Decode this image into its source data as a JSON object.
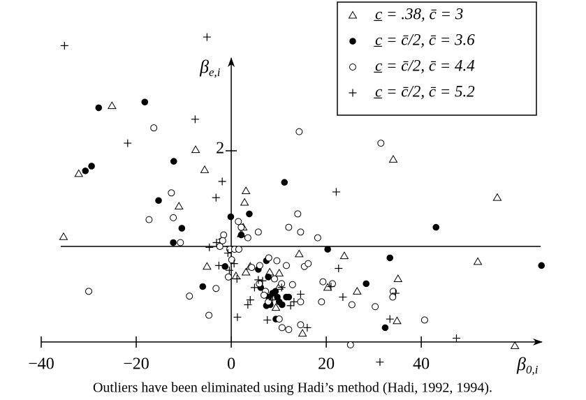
{
  "chart_data": {
    "type": "scatter",
    "x_label": {
      "text": "β",
      "sub": "0,i"
    },
    "y_label": {
      "text": "β",
      "sub": "e,i"
    },
    "caption": "Outliers have been eliminated using Hadi’s method (Hadi, 1992, 1994).",
    "xlim": [
      -40,
      66
    ],
    "ylim": [
      -0.3,
      3.3
    ],
    "xticks": [
      {
        "value": -40,
        "label": "−40"
      },
      {
        "value": -20,
        "label": "−20"
      },
      0,
      20,
      40
    ],
    "yticks": [
      1,
      2
    ],
    "reference_line": 1,
    "legend": "top-right",
    "series": [
      {
        "name": "c̲ = .38, c̄ = 3",
        "color": "#000000",
        "marker": "open-triangle",
        "x": [
          -25.1,
          -32.1,
          -35.3,
          -7.5,
          -5.6,
          -11.0,
          3.1,
          2.8,
          2.5,
          2.1,
          -5.1,
          1.0,
          3.1,
          4.0,
          10.1,
          8.1,
          10.1,
          9.4,
          14.3,
          20.3,
          23.8,
          26.5,
          34.1,
          35.1,
          34.9,
          15.0,
          51.9,
          56.0,
          59.7
        ],
        "values": [
          2.47,
          1.76,
          1.1,
          2.01,
          1.8,
          1.42,
          1.58,
          1.46,
          1.2,
          1.13,
          0.79,
          0.69,
          0.73,
          0.79,
          0.72,
          0.73,
          0.58,
          0.36,
          0.92,
          0.57,
          0.9,
          0.53,
          1.91,
          0.66,
          0.22,
          0.09,
          0.84,
          1.51,
          -0.04
        ]
      },
      {
        "name": "c̲ = c̄/2, c̄ = 3.6",
        "color": "#000000",
        "marker": "filled-circle",
        "x": [
          -27.9,
          -18.2,
          -29.4,
          -30.7,
          -12.1,
          -15.3,
          -10.4,
          -12.2,
          -0.1,
          2.1,
          3.8,
          -1.3,
          -6.0,
          7.4,
          5.7,
          7.8,
          6.2,
          8.7,
          7.9,
          9.3,
          9.7,
          8.2,
          7.4,
          10.7,
          10.1,
          9.4,
          11.6,
          12.1,
          11.2,
          20.3,
          33.4,
          28.4,
          32.4,
          43.1,
          65.3
        ],
        "values": [
          2.45,
          2.51,
          1.84,
          1.79,
          1.89,
          1.48,
          1.19,
          1.04,
          1.31,
          1.12,
          1.34,
          0.79,
          0.58,
          0.85,
          0.76,
          0.68,
          0.57,
          0.51,
          0.47,
          0.53,
          0.47,
          0.39,
          0.38,
          0.39,
          0.42,
          0.24,
          0.47,
          0.47,
          1.67,
          0.97,
          0.88,
          0.61,
          0.15,
          1.2,
          0.8
        ]
      },
      {
        "name": "c̲ = c̄/2, c̄ = 4.4",
        "color": "#000000",
        "marker": "open-circle",
        "x": [
          -16.3,
          14.3,
          31.5,
          -12.6,
          -17.3,
          -12.2,
          -10.7,
          -1.6,
          -1.8,
          -0.3,
          0.7,
          1.6,
          1.5,
          2.1,
          3.5,
          5.7,
          12.1,
          14.0,
          14.6,
          18.2,
          0.1,
          4.3,
          6.0,
          7.9,
          9.6,
          11.6,
          15.4,
          16.2,
          5.9,
          7.2,
          6.9,
          7.8,
          9.1,
          10.6,
          12.9,
          19.3,
          21.3,
          34.1,
          34.0,
          25.4,
          30.3,
          19.0,
          14.6,
          10.1,
          10.7,
          12.1,
          14.6,
          -8.8,
          -4.7,
          -3.2,
          -0.6,
          -2.4,
          -30.0,
          40.7,
          25.1
        ],
        "values": [
          2.24,
          2.2,
          2.08,
          1.56,
          1.28,
          1.3,
          1.04,
          1.12,
          1.06,
          0.97,
          0.97,
          0.97,
          1.26,
          1.2,
          1.09,
          1.15,
          1.2,
          1.34,
          1.15,
          1.09,
          0.86,
          0.78,
          0.8,
          0.88,
          0.85,
          0.8,
          0.79,
          0.82,
          0.61,
          0.53,
          0.49,
          0.42,
          0.66,
          0.61,
          0.6,
          0.63,
          0.61,
          0.53,
          0.47,
          0.39,
          0.37,
          0.42,
          0.42,
          0.24,
          0.15,
          0.13,
          0.18,
          0.48,
          0.28,
          0.56,
          0.68,
          1.0,
          0.53,
          0.23,
          -0.03
        ]
      },
      {
        "name": "c̲ = c̄/2, c̄ = 5.2",
        "color": "#000000",
        "marker": "plus",
        "x": [
          -35.1,
          -5.1,
          -7.6,
          -21.8,
          -1.9,
          -3.2,
          -3.1,
          -4.6,
          -0.7,
          -2.6,
          -0.4,
          1.2,
          0.6,
          5.7,
          6.6,
          4.9,
          4.0,
          3.5,
          1.3,
          7.6,
          8.7,
          10.6,
          12.5,
          13.2,
          14.6,
          16.0,
          22.6,
          22.1,
          23.5,
          21.0,
          33.4,
          34.6,
          47.4,
          31.3
        ],
        "values": [
          3.1,
          3.19,
          2.33,
          2.08,
          1.68,
          1.51,
          1.04,
          0.99,
          0.93,
          0.8,
          0.75,
          0.66,
          0.82,
          0.65,
          0.64,
          0.57,
          0.44,
          0.39,
          0.26,
          0.23,
          0.44,
          0.57,
          0.38,
          0.42,
          0.5,
          0.15,
          0.77,
          1.57,
          0.47,
          0.58,
          0.24,
          0.51,
          0.04,
          -0.21
        ]
      }
    ]
  }
}
